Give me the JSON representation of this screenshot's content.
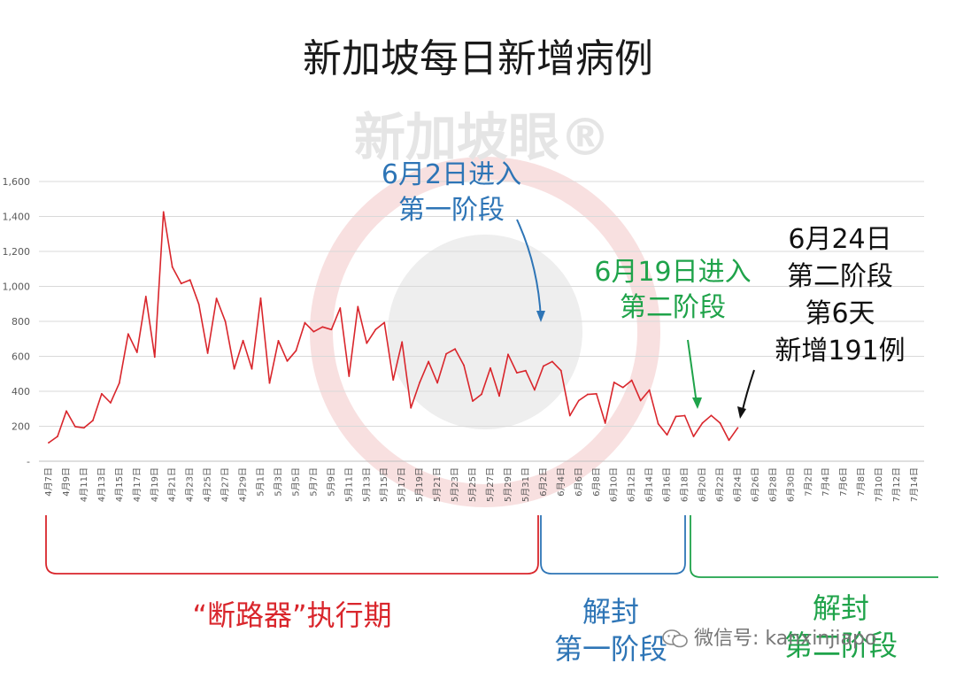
{
  "title": "新加坡每日新增病例",
  "watermark": "新加坡眼®",
  "wechat_label": "微信号: kanxinjiapo",
  "annotations": {
    "phase1_entry": [
      "6月2日进入",
      "第一阶段"
    ],
    "phase2_entry": [
      "6月19日进入",
      "第二阶段"
    ],
    "latest": [
      "6月24日",
      "第二阶段",
      "第6天",
      "新增191例"
    ]
  },
  "periods": {
    "circuit_breaker": "“断路器”执行期",
    "phase1": [
      "解封",
      "第一阶段"
    ],
    "phase2": [
      "解封",
      "第二阶段"
    ]
  },
  "colors": {
    "line": "#d9262c",
    "phase1": "#2e75b6",
    "phase2": "#1fa34a",
    "circuit_breaker": "#d9262c"
  },
  "chart_data": {
    "type": "line",
    "title": "新加坡每日新增病例",
    "ylim": [
      0,
      1600
    ],
    "y_ticks": [
      "1,600",
      "1,400",
      "1,200",
      "1,000",
      "800",
      "600",
      "400",
      "200",
      "-"
    ],
    "grid": true,
    "x_ticks": [
      "4月7日",
      "4月9日",
      "4月11日",
      "4月13日",
      "4月15日",
      "4月17日",
      "4月19日",
      "4月21日",
      "4月23日",
      "4月25日",
      "4月27日",
      "4月29日",
      "5月1日",
      "5月3日",
      "5月5日",
      "5月7日",
      "5月9日",
      "5月11日",
      "5月13日",
      "5月15日",
      "5月17日",
      "5月19日",
      "5月21日",
      "5月23日",
      "5月25日",
      "5月27日",
      "5月29日",
      "5月31日",
      "6月2日",
      "6月4日",
      "6月6日",
      "6月8日",
      "6月10日",
      "6月12日",
      "6月14日",
      "6月16日",
      "6月18日",
      "6月20日",
      "6月22日",
      "6月24日",
      "6月26日",
      "6月28日",
      "6月30日",
      "7月2日",
      "7月4日",
      "7月6日",
      "7月8日",
      "7月10日",
      "7月12日",
      "7月14日"
    ],
    "total_days": 99,
    "series": [
      {
        "values": [
          106,
          142,
          287,
          198,
          191,
          233,
          386,
          334,
          447,
          728,
          623,
          942,
          596,
          1426,
          1111,
          1016,
          1037,
          897,
          618,
          931,
          799,
          528,
          690,
          528,
          932,
          447,
          689,
          573,
          632,
          792,
          741,
          768,
          753,
          876,
          486,
          884,
          675,
          753,
          793,
          465,
          682,
          305,
          451,
          570,
          448,
          614,
          642,
          548,
          344,
          383,
          533,
          373,
          611,
          506,
          518,
          408,
          544,
          570,
          518,
          261,
          347,
          382,
          386,
          218,
          451,
          422,
          463,
          347,
          407,
          214,
          151,
          256,
          261,
          142,
          218,
          262,
          218,
          120,
          191
        ]
      }
    ]
  }
}
